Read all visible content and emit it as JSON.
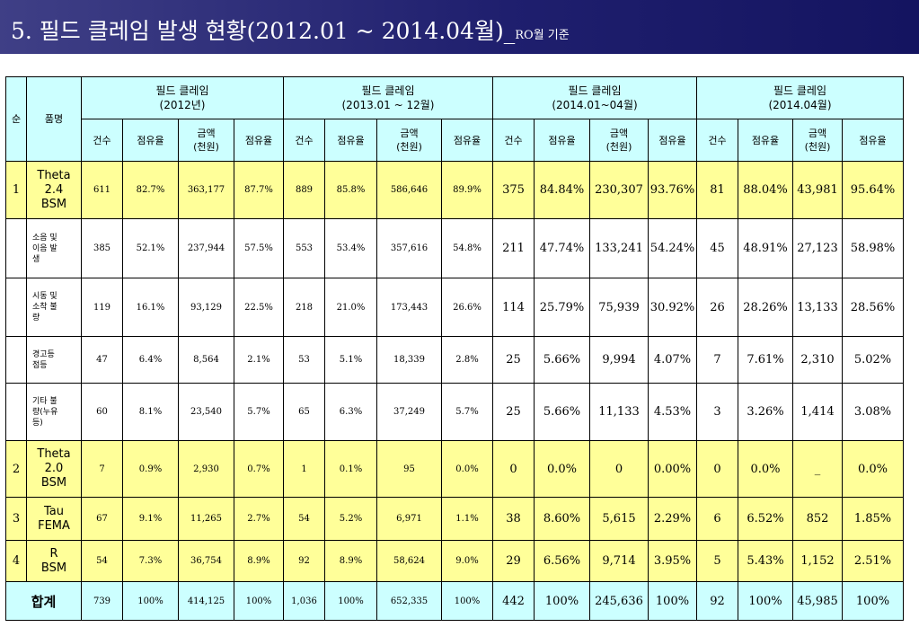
{
  "page": {
    "title": "5. 필드 클레임 발생 현황(2012.01 ~ 2014.04월)_",
    "subtitle": "RO월 기준"
  },
  "table": {
    "headers": {
      "no": "순",
      "product": "품명",
      "groups": [
        {
          "line1": "필드 클레임",
          "line2": "(2012년)"
        },
        {
          "line1": "필드 클레임",
          "line2": "(2013.01 ~ 12월)"
        },
        {
          "line1": "필드 클레임",
          "line2": "(2014.01~04월)"
        },
        {
          "line1": "필드 클레임",
          "line2": "(2014.04월)"
        }
      ],
      "sub": {
        "count": "건수",
        "share": "점유율",
        "amount_line1": "금액",
        "amount_line2": "(천원)"
      }
    },
    "rows": [
      {
        "no": "1",
        "name": [
          "Theta",
          "2.4",
          "BSM"
        ],
        "g1": [
          "611",
          "82.7%",
          "363,177",
          "87.7%"
        ],
        "g2": [
          "889",
          "85.8%",
          "586,646",
          "89.9%"
        ],
        "g3": [
          "375",
          "84.84%",
          "230,307",
          "93.76%"
        ],
        "g4": [
          "81",
          "88.04%",
          "43,981",
          "95.64%"
        ]
      },
      {
        "no": "",
        "name": [
          "소음 및",
          "이음 발",
          "생"
        ],
        "g1": [
          "385",
          "52.1%",
          "237,944",
          "57.5%"
        ],
        "g2": [
          "553",
          "53.4%",
          "357,616",
          "54.8%"
        ],
        "g3": [
          "211",
          "47.74%",
          "133,241",
          "54.24%"
        ],
        "g4": [
          "45",
          "48.91%",
          "27,123",
          "58.98%"
        ]
      },
      {
        "no": "",
        "name": [
          "시동 및",
          "소착 불",
          "량"
        ],
        "g1": [
          "119",
          "16.1%",
          "93,129",
          "22.5%"
        ],
        "g2": [
          "218",
          "21.0%",
          "173,443",
          "26.6%"
        ],
        "g3": [
          "114",
          "25.79%",
          "75,939",
          "30.92%"
        ],
        "g4": [
          "26",
          "28.26%",
          "13,133",
          "28.56%"
        ]
      },
      {
        "no": "",
        "name": [
          "경고등",
          "점등",
          ""
        ],
        "g1": [
          "47",
          "6.4%",
          "8,564",
          "2.1%"
        ],
        "g2": [
          "53",
          "5.1%",
          "18,339",
          "2.8%"
        ],
        "g3": [
          "25",
          "5.66%",
          "9,994",
          "4.07%"
        ],
        "g4": [
          "7",
          "7.61%",
          "2,310",
          "5.02%"
        ]
      },
      {
        "no": "",
        "name": [
          "기타 불",
          "량(누유",
          "등)"
        ],
        "g1": [
          "60",
          "8.1%",
          "23,540",
          "5.7%"
        ],
        "g2": [
          "65",
          "6.3%",
          "37,249",
          "5.7%"
        ],
        "g3": [
          "25",
          "5.66%",
          "11,133",
          "4.53%"
        ],
        "g4": [
          "3",
          "3.26%",
          "1,414",
          "3.08%"
        ]
      },
      {
        "no": "2",
        "name": [
          "Theta",
          "2.0",
          "BSM"
        ],
        "g1": [
          "7",
          "0.9%",
          "2,930",
          "0.7%"
        ],
        "g2": [
          "1",
          "0.1%",
          "95",
          "0.0%"
        ],
        "g3": [
          "0",
          "0.0%",
          "0",
          "0.00%"
        ],
        "g4": [
          "0",
          "0.0%",
          "_",
          "0.0%"
        ]
      },
      {
        "no": "3",
        "name": [
          "Tau",
          "FEMA",
          ""
        ],
        "g1": [
          "67",
          "9.1%",
          "11,265",
          "2.7%"
        ],
        "g2": [
          "54",
          "5.2%",
          "6,971",
          "1.1%"
        ],
        "g3": [
          "38",
          "8.60%",
          "5,615",
          "2.29%"
        ],
        "g4": [
          "6",
          "6.52%",
          "852",
          "1.85%"
        ]
      },
      {
        "no": "4",
        "name": [
          "R",
          "BSM",
          ""
        ],
        "g1": [
          "54",
          "7.3%",
          "36,754",
          "8.9%"
        ],
        "g2": [
          "92",
          "8.9%",
          "58,624",
          "9.0%"
        ],
        "g3": [
          "29",
          "6.56%",
          "9,714",
          "3.95%"
        ],
        "g4": [
          "5",
          "5.43%",
          "1,152",
          "2.51%"
        ]
      }
    ],
    "total": {
      "label": "합계",
      "g1": [
        "739",
        "100%",
        "414,125",
        "100%"
      ],
      "g2": [
        "1,036",
        "100%",
        "652,335",
        "100%"
      ],
      "g3": [
        "442",
        "100%",
        "245,636",
        "100%"
      ],
      "g4": [
        "92",
        "100%",
        "45,985",
        "100%"
      ]
    }
  },
  "colors": {
    "title_bg": "#1f1f6e",
    "header_bg": "#ccffff",
    "highlight_bg": "#ffff99"
  }
}
